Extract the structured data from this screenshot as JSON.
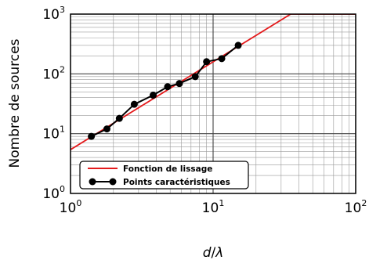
{
  "chart_data": {
    "type": "line",
    "title": "",
    "xlabel": "d/λ",
    "xlabel_parts": {
      "var": "d",
      "sep": "/",
      "sym": "λ"
    },
    "ylabel": "Nombre de sources",
    "xscale": "log",
    "yscale": "log",
    "xlim": [
      1,
      100
    ],
    "ylim": [
      1,
      1000
    ],
    "grid": "major and minor",
    "x_ticks": [
      {
        "value": 1,
        "base": "10",
        "exp": "0"
      },
      {
        "value": 10,
        "base": "10",
        "exp": "1"
      },
      {
        "value": 100,
        "base": "10",
        "exp": "2"
      }
    ],
    "y_ticks": [
      {
        "value": 1,
        "base": "10",
        "exp": "0"
      },
      {
        "value": 10,
        "base": "10",
        "exp": "1"
      },
      {
        "value": 100,
        "base": "10",
        "exp": "2"
      },
      {
        "value": 1000,
        "base": "10",
        "exp": "3"
      }
    ],
    "legend_position": "bottom-left",
    "series": [
      {
        "name": "Fonction de lissage",
        "color": "#e41a1c",
        "style": "line",
        "x": [
          1,
          35,
          100
        ],
        "y": [
          5.4,
          1000,
          1000
        ]
      },
      {
        "name": "Points caractéristiques",
        "color": "#000000",
        "style": "line+markers",
        "x": [
          1.4,
          1.8,
          2.2,
          2.8,
          3.8,
          4.8,
          5.8,
          7.5,
          9.0,
          11.5,
          15.0
        ],
        "y": [
          9,
          12,
          18,
          31,
          44,
          61,
          69,
          90,
          160,
          180,
          300
        ]
      }
    ]
  }
}
